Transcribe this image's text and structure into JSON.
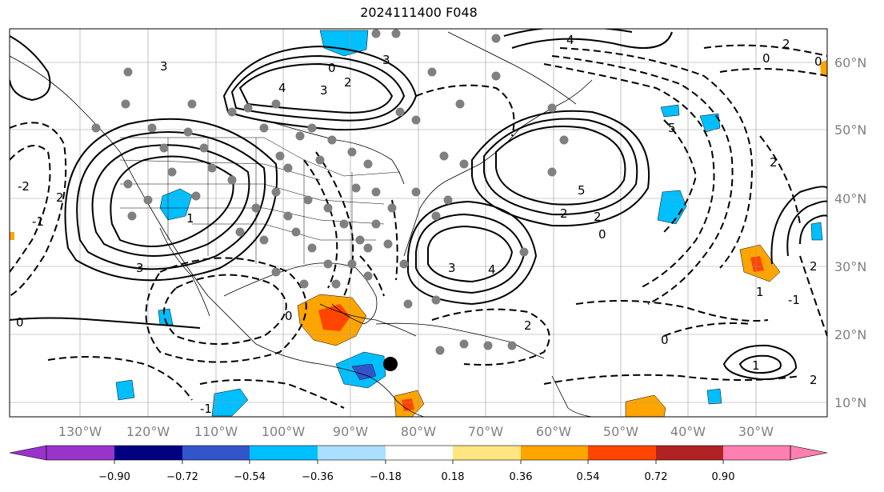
{
  "title": "2024111400 F048",
  "longitude_labels": [
    "130°W",
    "120°W",
    "110°W",
    "100°W",
    "90°W",
    "80°W",
    "70°W",
    "60°W",
    "50°W",
    "40°W",
    "30°W"
  ],
  "latitude_labels": [
    "60°N",
    "50°N",
    "40°N",
    "30°N",
    "20°N",
    "10°N"
  ],
  "colorbar": {
    "tick_labels": [
      "−0.90",
      "−0.72",
      "−0.54",
      "−0.36",
      "−0.18",
      "0.18",
      "0.36",
      "0.54",
      "0.72",
      "0.90"
    ],
    "colors": [
      "#9933cc",
      "#000080",
      "#3355cc",
      "#00bfff",
      "#aadfff",
      "#ffffff",
      "#ffe680",
      "#ffa500",
      "#ff4500",
      "#b22222",
      "#ff80b0"
    ]
  },
  "contour_labels": [
    "3",
    "4",
    "0",
    "3",
    "3",
    "2",
    "5",
    "2",
    "3",
    "4",
    "2",
    "0",
    "1",
    "2",
    "0",
    "0",
    "3",
    "4",
    "5",
    "2",
    "0",
    "1",
    "-1",
    "2",
    "0",
    "2",
    "-2",
    "-1",
    "0",
    "1",
    "-1",
    "2",
    "2"
  ],
  "colors": {
    "axis_text": "#808080",
    "contour": "#000000",
    "grid": "#999999",
    "marker_gray": "#808080",
    "marker_black": "#000000"
  },
  "elements": {
    "markers_gray": "gray-station-dots",
    "marker_black": "black-storm-dot"
  }
}
